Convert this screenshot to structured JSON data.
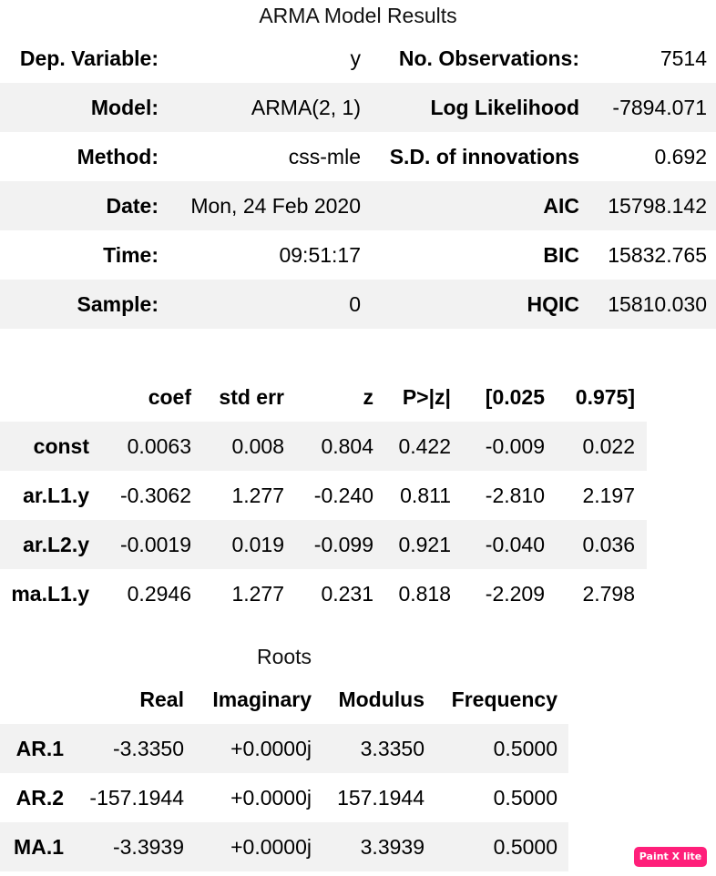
{
  "summary": {
    "title": "ARMA Model Results",
    "rows": [
      {
        "l_label": "Dep. Variable:",
        "l_value": "y",
        "r_label": "No. Observations:",
        "r_value": "7514"
      },
      {
        "l_label": "Model:",
        "l_value": "ARMA(2, 1)",
        "r_label": "Log Likelihood",
        "r_value": "-7894.071"
      },
      {
        "l_label": "Method:",
        "l_value": "css-mle",
        "r_label": "S.D. of innovations",
        "r_value": "0.692"
      },
      {
        "l_label": "Date:",
        "l_value": "Mon, 24 Feb 2020",
        "r_label": "AIC",
        "r_value": "15798.142"
      },
      {
        "l_label": "Time:",
        "l_value": "09:51:17",
        "r_label": "BIC",
        "r_value": "15832.765"
      },
      {
        "l_label": "Sample:",
        "l_value": "0",
        "r_label": "HQIC",
        "r_value": "15810.030"
      }
    ]
  },
  "coefs": {
    "headers": [
      "coef",
      "std err",
      "z",
      "P>|z|",
      "[0.025",
      "0.975]"
    ],
    "rows": [
      {
        "name": "const",
        "values": [
          "0.0063",
          "0.008",
          "0.804",
          "0.422",
          "-0.009",
          "0.022"
        ]
      },
      {
        "name": "ar.L1.y",
        "values": [
          "-0.3062",
          "1.277",
          "-0.240",
          "0.811",
          "-2.810",
          "2.197"
        ]
      },
      {
        "name": "ar.L2.y",
        "values": [
          "-0.0019",
          "0.019",
          "-0.099",
          "0.921",
          "-0.040",
          "0.036"
        ]
      },
      {
        "name": "ma.L1.y",
        "values": [
          "0.2946",
          "1.277",
          "0.231",
          "0.818",
          "-2.209",
          "2.798"
        ]
      }
    ]
  },
  "roots": {
    "title": "Roots",
    "headers": [
      "Real",
      "Imaginary",
      "Modulus",
      "Frequency"
    ],
    "rows": [
      {
        "name": "AR.1",
        "values": [
          "-3.3350",
          "+0.0000j",
          "3.3350",
          "0.5000"
        ]
      },
      {
        "name": "AR.2",
        "values": [
          "-157.1944",
          "+0.0000j",
          "157.1944",
          "0.5000"
        ]
      },
      {
        "name": "MA.1",
        "values": [
          "-3.3939",
          "+0.0000j",
          "3.3939",
          "0.5000"
        ]
      }
    ]
  },
  "watermark": {
    "text": "Paint X lite",
    "color": "#ff1f7a"
  }
}
